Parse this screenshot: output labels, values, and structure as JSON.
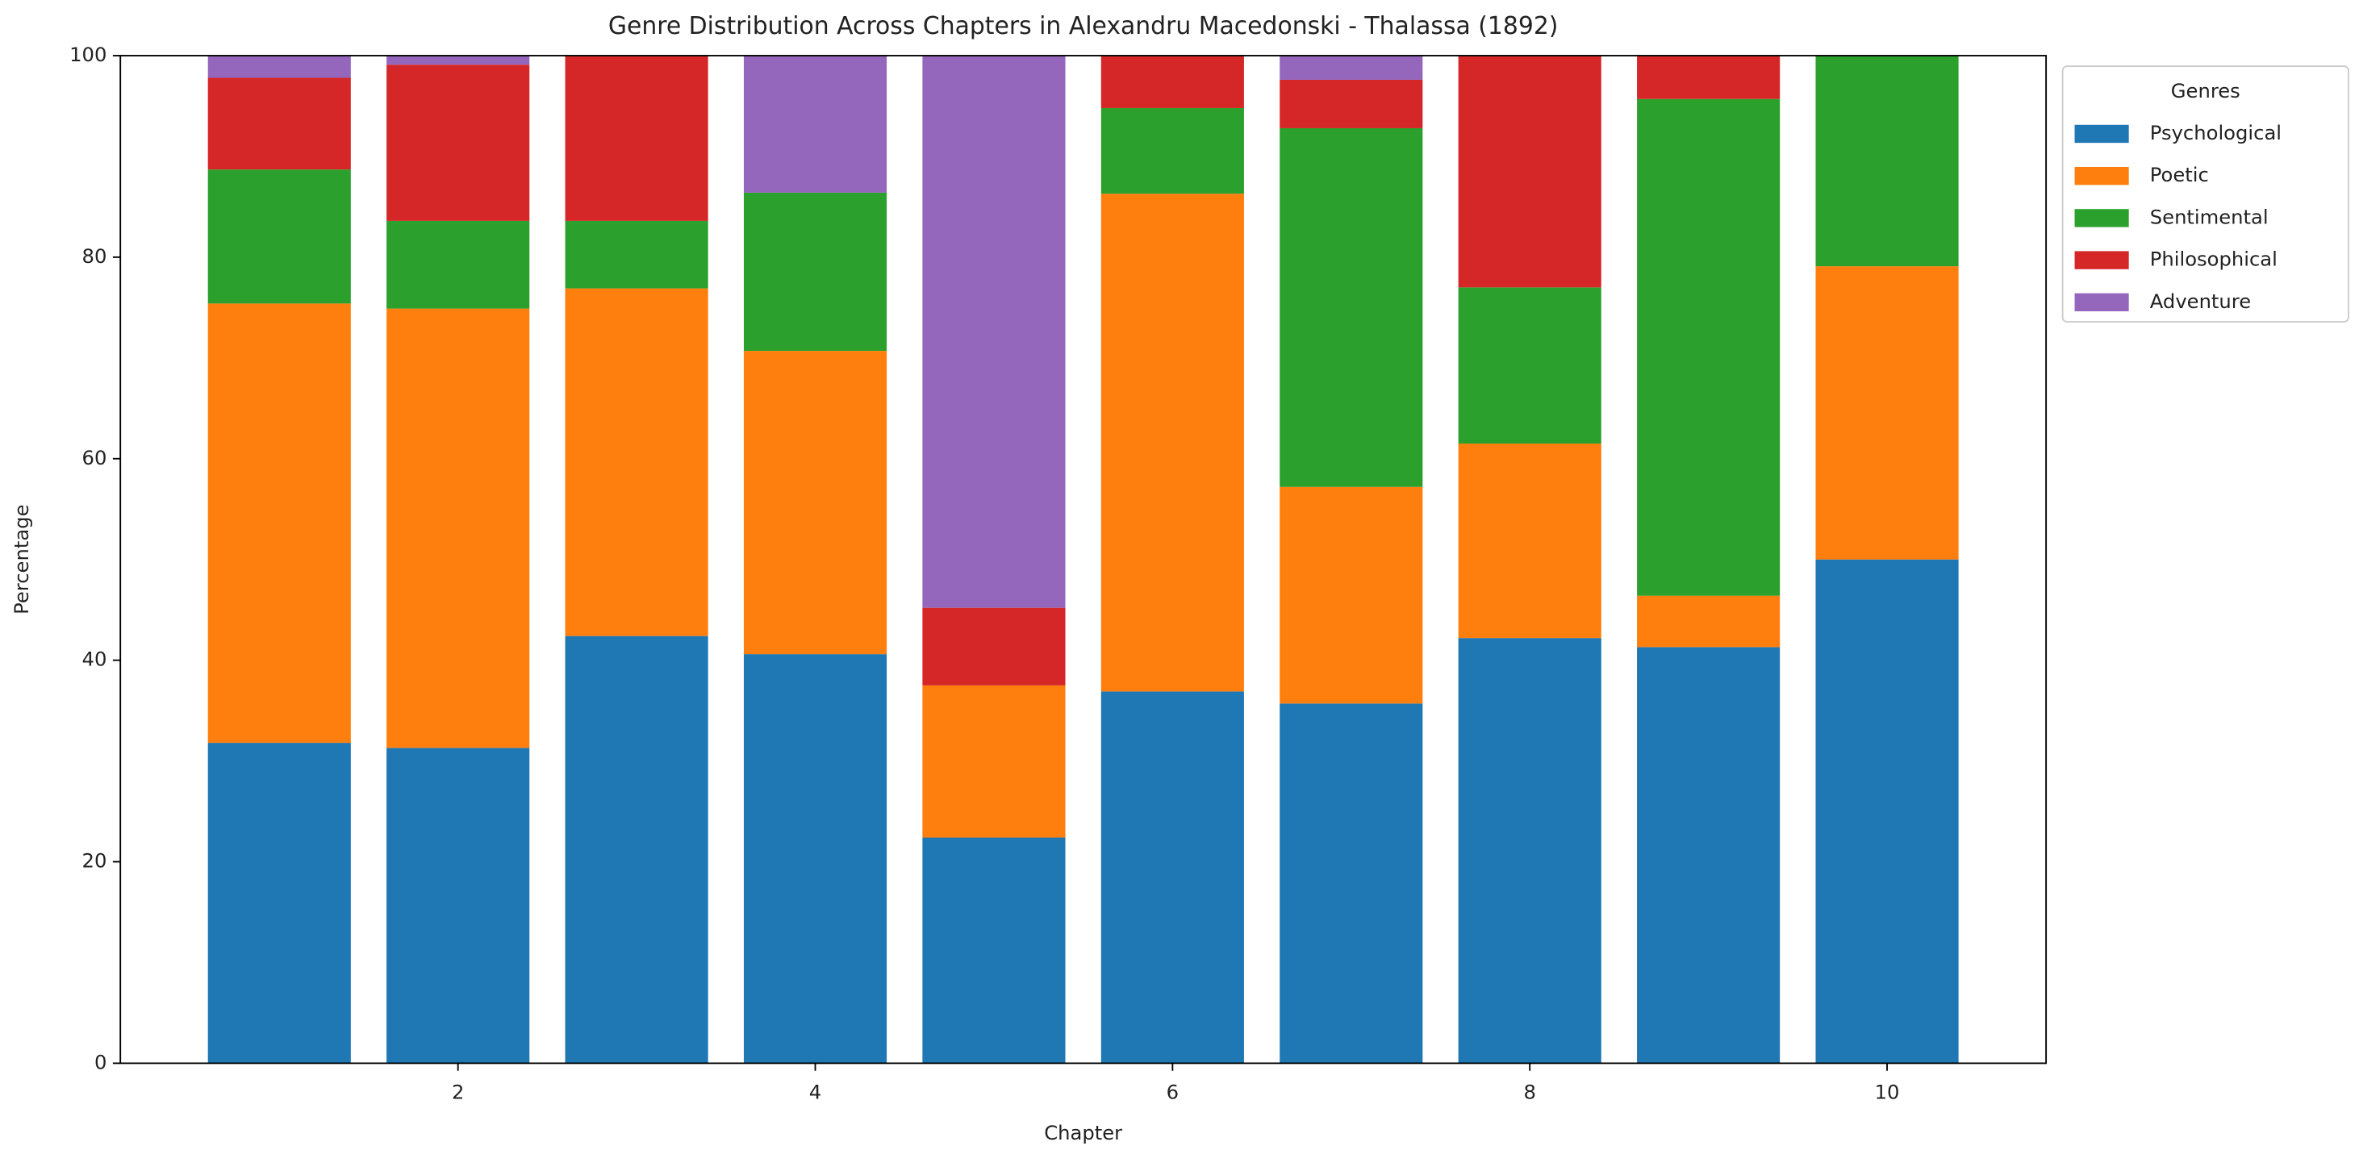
{
  "chart_data": {
    "type": "stacked_bar",
    "title": "Genre Distribution Across Chapters in  Alexandru Macedonski - Thalassa (1892)",
    "x_label": "Chapter",
    "y_label": "Percentage",
    "x": [
      1,
      2,
      3,
      4,
      5,
      6,
      7,
      8,
      9,
      10
    ],
    "series": [
      {
        "name": "Psychological",
        "color": "#1f77b4",
        "values": [
          31.8,
          31.3,
          42.4,
          40.6,
          22.4,
          36.9,
          35.7,
          42.2,
          41.3,
          50.0
        ]
      },
      {
        "name": "Poetic",
        "color": "#ff7f0e",
        "values": [
          43.6,
          43.6,
          34.5,
          30.1,
          15.1,
          49.4,
          21.5,
          19.3,
          5.1,
          29.1
        ]
      },
      {
        "name": "Sentimental",
        "color": "#2ca02c",
        "values": [
          13.3,
          8.7,
          6.7,
          15.7,
          0,
          8.5,
          35.6,
          15.5,
          49.3,
          20.9
        ]
      },
      {
        "name": "Philosophical",
        "color": "#d62728",
        "values": [
          9.1,
          15.5,
          16.4,
          0,
          7.7,
          5.2,
          4.8,
          23.0,
          4.3,
          0
        ]
      },
      {
        "name": "Adventure",
        "color": "#9467bd",
        "values": [
          2.2,
          0.9,
          0,
          13.6,
          54.8,
          0,
          2.4,
          0,
          0,
          0
        ]
      }
    ],
    "legend_title": "Genres",
    "legend_position": "outside-upper-right",
    "bar_width": 0.8,
    "xlim": [
      0.11,
      10.89
    ],
    "xticks": [
      2,
      4,
      6,
      8,
      10
    ],
    "ylim": [
      0,
      100
    ],
    "yticks": [
      0,
      20,
      40,
      60,
      80,
      100
    ],
    "grid": false
  }
}
